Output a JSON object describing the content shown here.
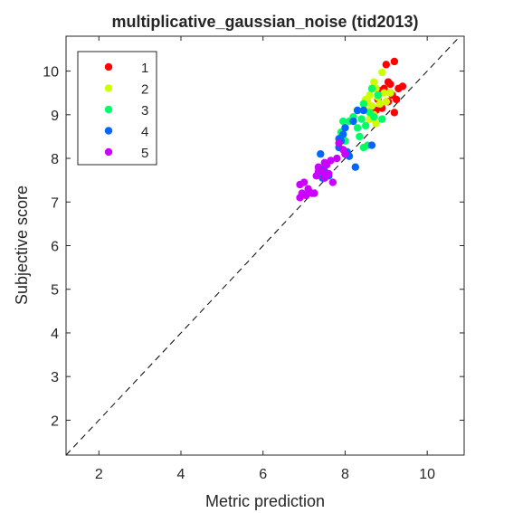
{
  "chart_data": {
    "type": "scatter",
    "title": "multiplicative_gaussian_noise (tid2013)",
    "xlabel": "Metric prediction",
    "ylabel": "Subjective score",
    "xlim": [
      1.2,
      10.9
    ],
    "ylim": [
      1.2,
      10.8
    ],
    "xticks": [
      2,
      4,
      6,
      8,
      10
    ],
    "yticks": [
      2,
      3,
      4,
      5,
      6,
      7,
      8,
      9,
      10
    ],
    "grid": false,
    "legend_position": "top-left",
    "reference_line": "y = x (dashed)",
    "series": [
      {
        "name": "1",
        "color": "#ff0000",
        "points": [
          [
            9.0,
            10.15
          ],
          [
            9.2,
            10.22
          ],
          [
            9.05,
            9.75
          ],
          [
            8.95,
            9.6
          ],
          [
            9.1,
            9.5
          ],
          [
            9.3,
            9.6
          ],
          [
            9.15,
            9.45
          ],
          [
            8.8,
            9.35
          ],
          [
            9.05,
            9.3
          ],
          [
            8.9,
            9.15
          ],
          [
            9.25,
            9.35
          ],
          [
            9.4,
            9.65
          ],
          [
            8.75,
            9.1
          ],
          [
            9.2,
            9.05
          ],
          [
            9.1,
            9.7
          ],
          [
            8.85,
            9.55
          ]
        ]
      },
      {
        "name": "2",
        "color": "#ccff00",
        "points": [
          [
            8.9,
            9.97
          ],
          [
            8.7,
            9.75
          ],
          [
            8.6,
            9.45
          ],
          [
            8.75,
            9.6
          ],
          [
            8.55,
            9.3
          ],
          [
            8.65,
            9.2
          ],
          [
            8.8,
            9.4
          ],
          [
            8.5,
            9.1
          ],
          [
            8.7,
            9.0
          ],
          [
            8.6,
            8.9
          ],
          [
            8.75,
            8.8
          ],
          [
            9.0,
            9.3
          ],
          [
            9.1,
            9.5
          ],
          [
            8.85,
            9.25
          ],
          [
            8.5,
            9.35
          ],
          [
            8.95,
            9.5
          ]
        ]
      },
      {
        "name": "3",
        "color": "#00ff66",
        "points": [
          [
            8.65,
            9.6
          ],
          [
            8.8,
            9.45
          ],
          [
            8.45,
            9.25
          ],
          [
            8.3,
            9.1
          ],
          [
            8.2,
            8.95
          ],
          [
            8.1,
            8.85
          ],
          [
            8.3,
            8.7
          ],
          [
            8.5,
            8.75
          ],
          [
            8.35,
            8.5
          ],
          [
            8.0,
            8.4
          ],
          [
            7.9,
            8.6
          ],
          [
            7.95,
            8.85
          ],
          [
            8.55,
            8.3
          ],
          [
            8.45,
            8.25
          ],
          [
            8.7,
            8.95
          ],
          [
            8.9,
            8.9
          ],
          [
            8.6,
            9.05
          ],
          [
            8.4,
            8.9
          ]
        ]
      },
      {
        "name": "4",
        "color": "#0066ff",
        "points": [
          [
            8.3,
            9.1
          ],
          [
            8.45,
            9.1
          ],
          [
            8.2,
            8.85
          ],
          [
            8.0,
            8.7
          ],
          [
            7.9,
            8.4
          ],
          [
            7.85,
            8.25
          ],
          [
            8.05,
            8.15
          ],
          [
            8.1,
            8.05
          ],
          [
            8.25,
            7.8
          ],
          [
            7.5,
            7.7
          ],
          [
            7.4,
            8.1
          ],
          [
            7.45,
            7.75
          ],
          [
            7.6,
            7.6
          ],
          [
            7.45,
            7.55
          ],
          [
            8.65,
            8.3
          ],
          [
            8.0,
            8.1
          ],
          [
            7.95,
            8.55
          ],
          [
            7.85,
            8.45
          ]
        ]
      },
      {
        "name": "5",
        "color": "#cc00ff",
        "points": [
          [
            7.85,
            8.35
          ],
          [
            7.95,
            8.2
          ],
          [
            8.0,
            8.1
          ],
          [
            7.8,
            8.0
          ],
          [
            7.65,
            7.95
          ],
          [
            7.5,
            7.9
          ],
          [
            7.35,
            7.8
          ],
          [
            7.55,
            7.85
          ],
          [
            7.45,
            7.7
          ],
          [
            7.6,
            7.65
          ],
          [
            7.7,
            7.45
          ],
          [
            7.5,
            7.55
          ],
          [
            7.3,
            7.6
          ],
          [
            7.35,
            7.7
          ],
          [
            7.1,
            7.3
          ],
          [
            7.2,
            7.2
          ],
          [
            7.0,
            7.45
          ],
          [
            6.9,
            7.4
          ],
          [
            6.95,
            7.2
          ],
          [
            6.9,
            7.1
          ],
          [
            7.05,
            7.15
          ],
          [
            7.25,
            7.2
          ]
        ]
      }
    ]
  }
}
